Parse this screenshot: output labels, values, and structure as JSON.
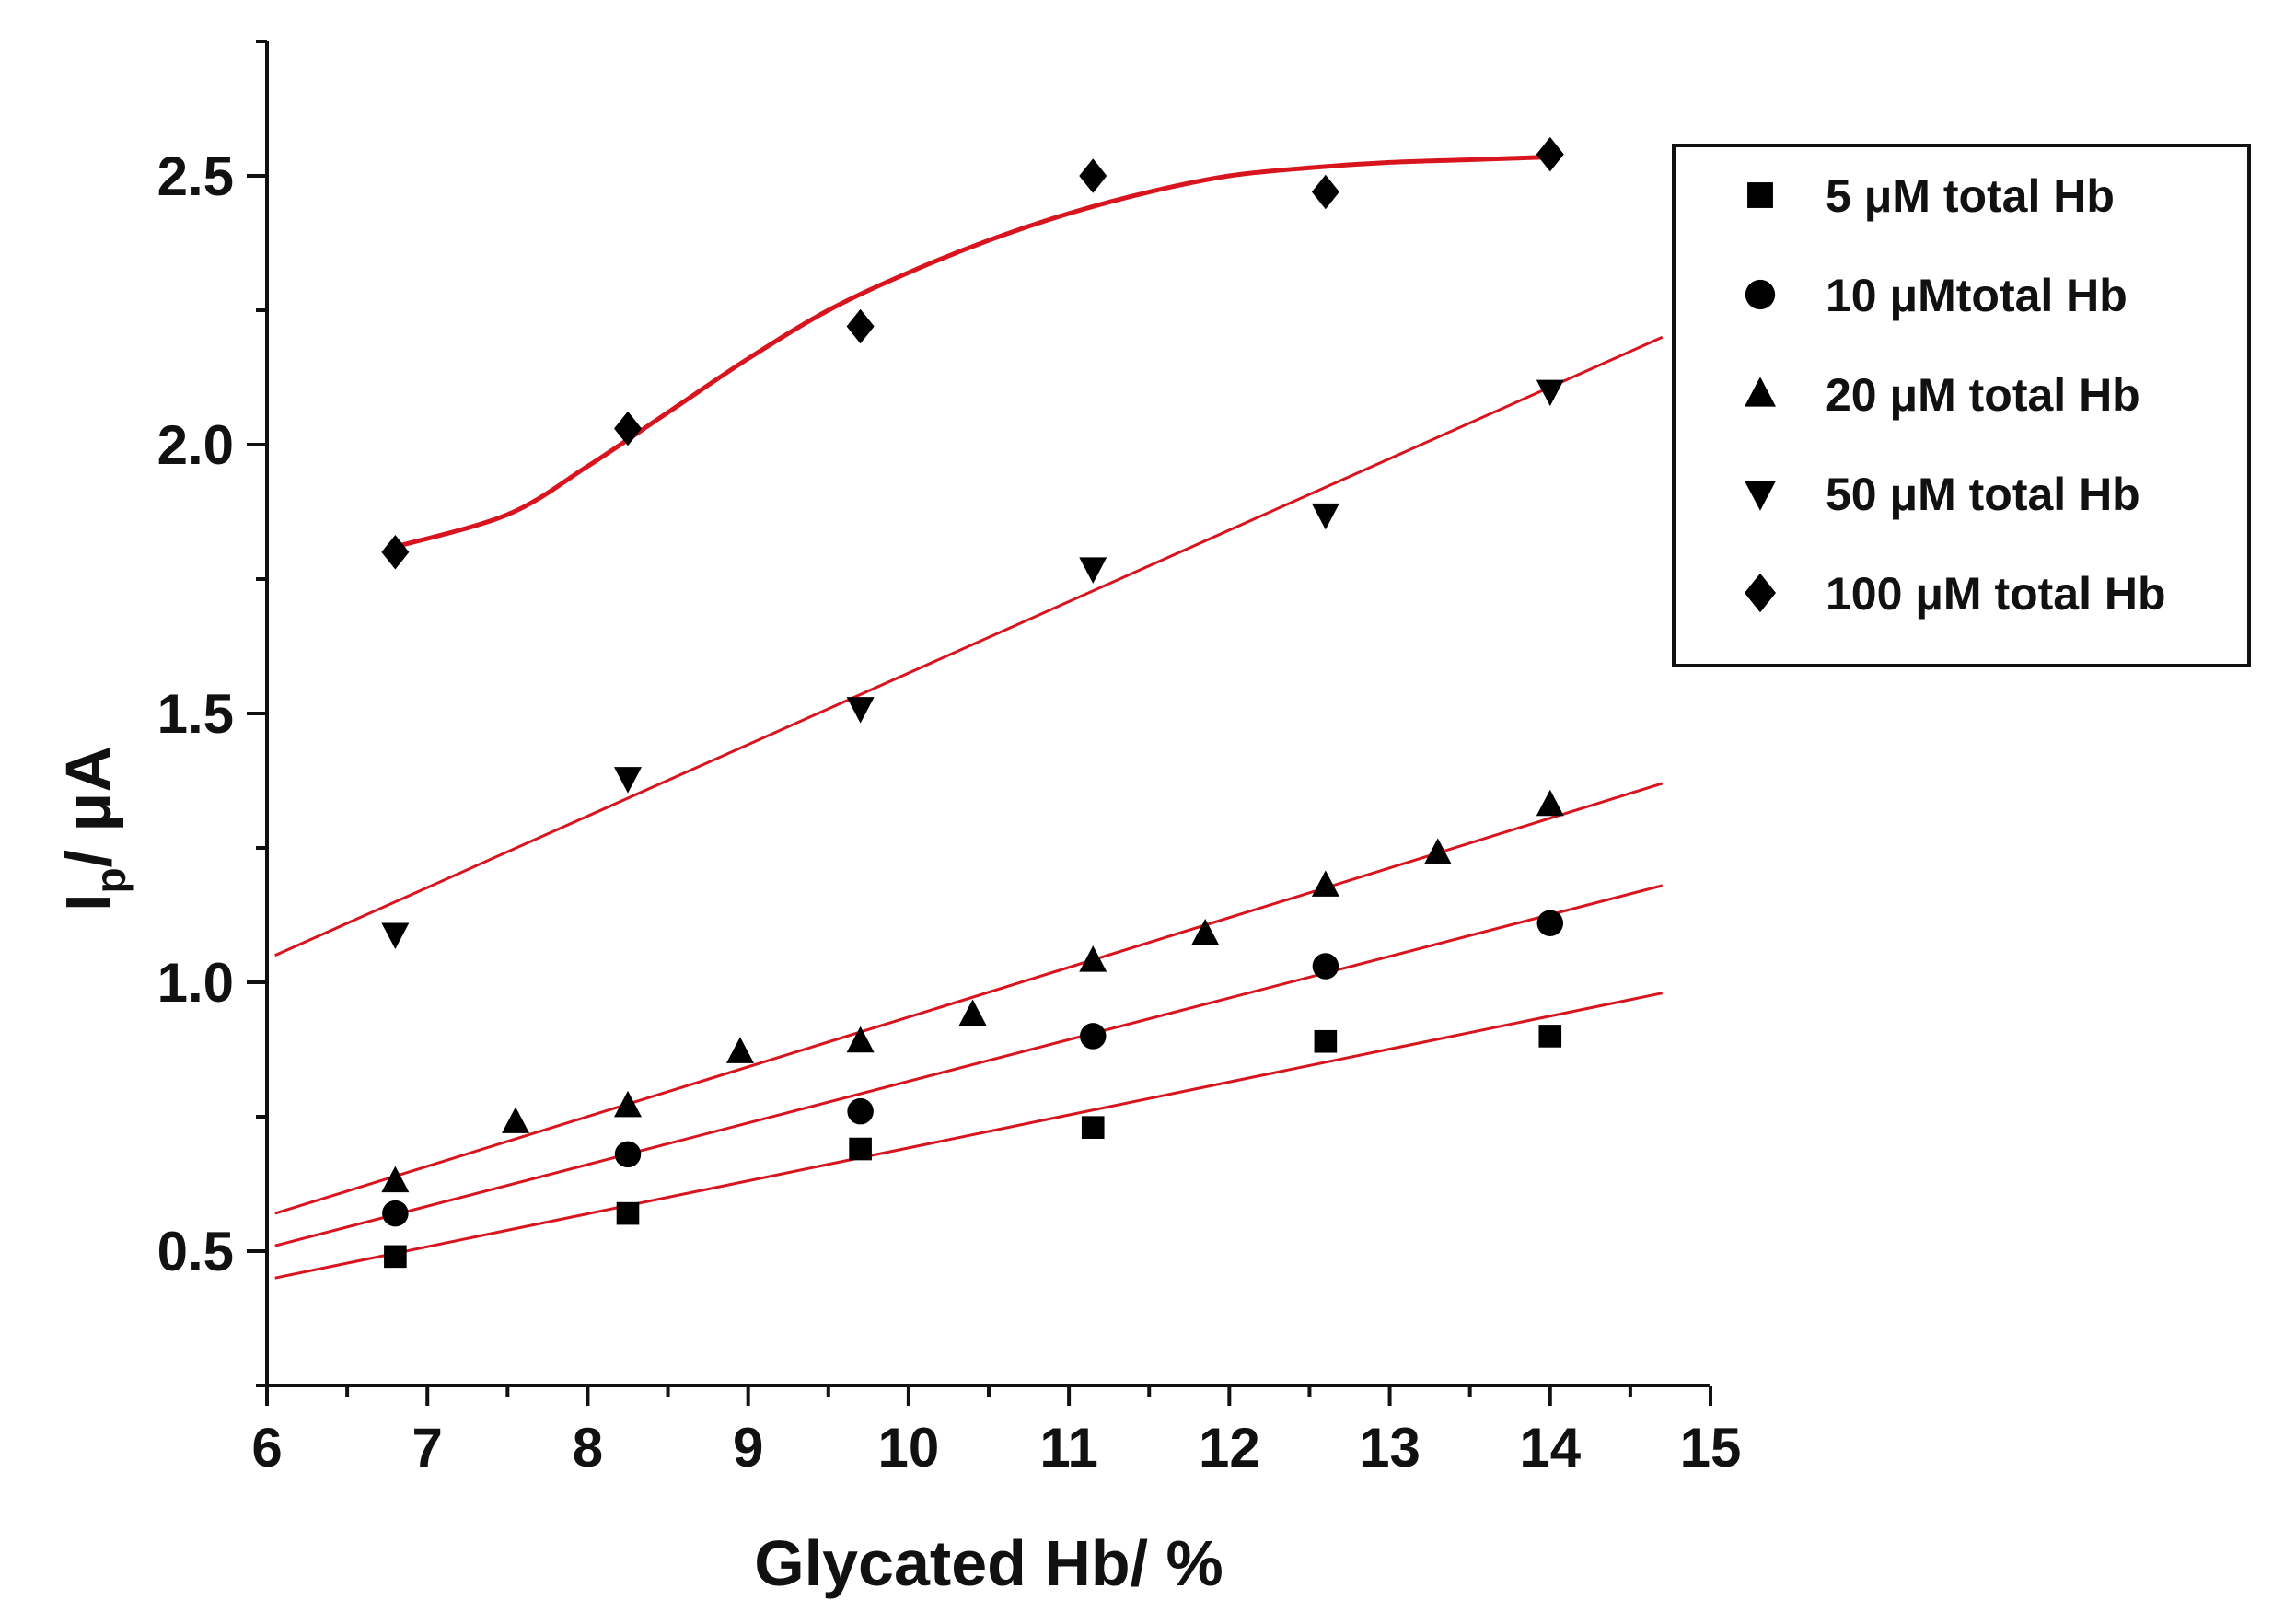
{
  "chart_data": {
    "type": "scatter",
    "xlabel": "Glycated Hb/ %",
    "ylabel_main": "I",
    "ylabel_sub": "p",
    "ylabel_rest": "/ μA",
    "xlim": [
      6,
      15
    ],
    "ylim": [
      0.25,
      2.75
    ],
    "x_ticks": [
      6,
      7,
      8,
      9,
      10,
      11,
      12,
      13,
      14,
      15
    ],
    "x_tick_labels": [
      "6",
      "7",
      "8",
      "9",
      "10",
      "11",
      "12",
      "13",
      "14",
      "15"
    ],
    "y_ticks": [
      0.5,
      1.0,
      1.5,
      2.0,
      2.5
    ],
    "y_tick_labels": [
      "0.5",
      "1.0",
      "1.5",
      "2.0",
      "2.5"
    ],
    "grid": false,
    "legend_position": "top-right",
    "fit_color": "#d8141e",
    "series": [
      {
        "name": "5 μM total Hb",
        "marker": "square",
        "x": [
          6.8,
          8.25,
          9.7,
          11.15,
          12.6,
          14.0
        ],
        "y": [
          0.49,
          0.57,
          0.69,
          0.73,
          0.89,
          0.9
        ],
        "fit": {
          "type": "linear",
          "x": [
            6.05,
            14.7
          ],
          "y": [
            0.45,
            0.98
          ]
        }
      },
      {
        "name": "10 μMtotal Hb",
        "marker": "circle",
        "x": [
          6.8,
          8.25,
          9.7,
          11.15,
          12.6,
          14.0
        ],
        "y": [
          0.57,
          0.68,
          0.76,
          0.9,
          1.03,
          1.11
        ],
        "fit": {
          "type": "linear",
          "x": [
            6.05,
            14.7
          ],
          "y": [
            0.51,
            1.18
          ]
        }
      },
      {
        "name": "20 μM total Hb",
        "marker": "triangle-up",
        "x": [
          6.8,
          7.55,
          8.25,
          8.95,
          9.7,
          10.4,
          11.15,
          11.85,
          12.6,
          13.3,
          14.0
        ],
        "y": [
          0.63,
          0.74,
          0.77,
          0.87,
          0.89,
          0.94,
          1.04,
          1.09,
          1.18,
          1.24,
          1.33
        ],
        "fit": {
          "type": "linear",
          "x": [
            6.05,
            14.7
          ],
          "y": [
            0.57,
            1.37
          ]
        }
      },
      {
        "name": "50 μM total Hb",
        "marker": "triangle-down",
        "x": [
          6.8,
          8.25,
          9.7,
          11.15,
          12.6,
          14.0
        ],
        "y": [
          1.09,
          1.38,
          1.51,
          1.77,
          1.87,
          2.1
        ],
        "fit": {
          "type": "linear",
          "x": [
            6.05,
            14.7
          ],
          "y": [
            1.05,
            2.2
          ]
        }
      },
      {
        "name": "100 μM total Hb",
        "marker": "diamond",
        "x": [
          6.8,
          8.25,
          9.7,
          11.15,
          12.6,
          14.0
        ],
        "y": [
          1.8,
          2.03,
          2.22,
          2.5,
          2.47,
          2.54
        ],
        "fit": {
          "type": "sigmoidal",
          "x": [
            6.8,
            7.5,
            8.0,
            8.5,
            9.0,
            9.5,
            10.0,
            10.5,
            11.0,
            11.5,
            12.0,
            12.5,
            13.0,
            13.5,
            14.0
          ],
          "y": [
            1.81,
            1.87,
            1.96,
            2.06,
            2.16,
            2.25,
            2.32,
            2.38,
            2.43,
            2.47,
            2.5,
            2.515,
            2.525,
            2.53,
            2.535
          ]
        }
      }
    ]
  }
}
